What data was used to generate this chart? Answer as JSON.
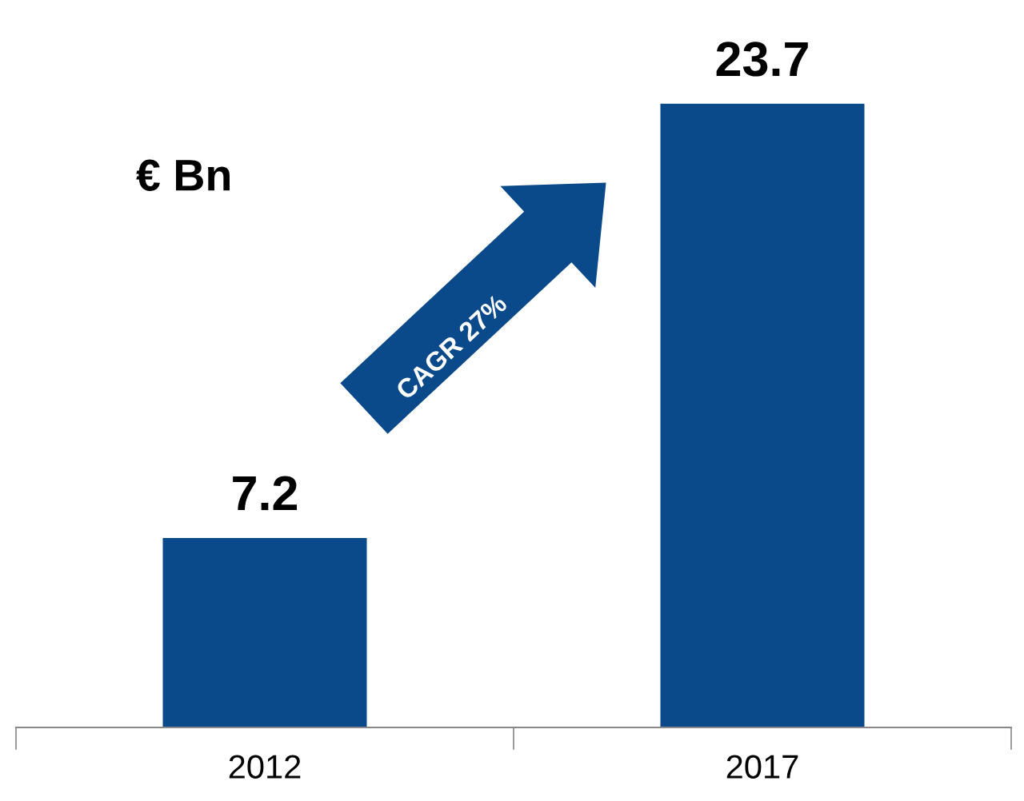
{
  "chart_data": {
    "type": "bar",
    "ylabel": "€ Bn",
    "categories": [
      "2012",
      "2017"
    ],
    "values": [
      7.2,
      23.7
    ],
    "color": "#0b4a8a",
    "data_labels": true,
    "grid": false,
    "legend": false,
    "annotations": [
      "CAGR 27%"
    ]
  }
}
